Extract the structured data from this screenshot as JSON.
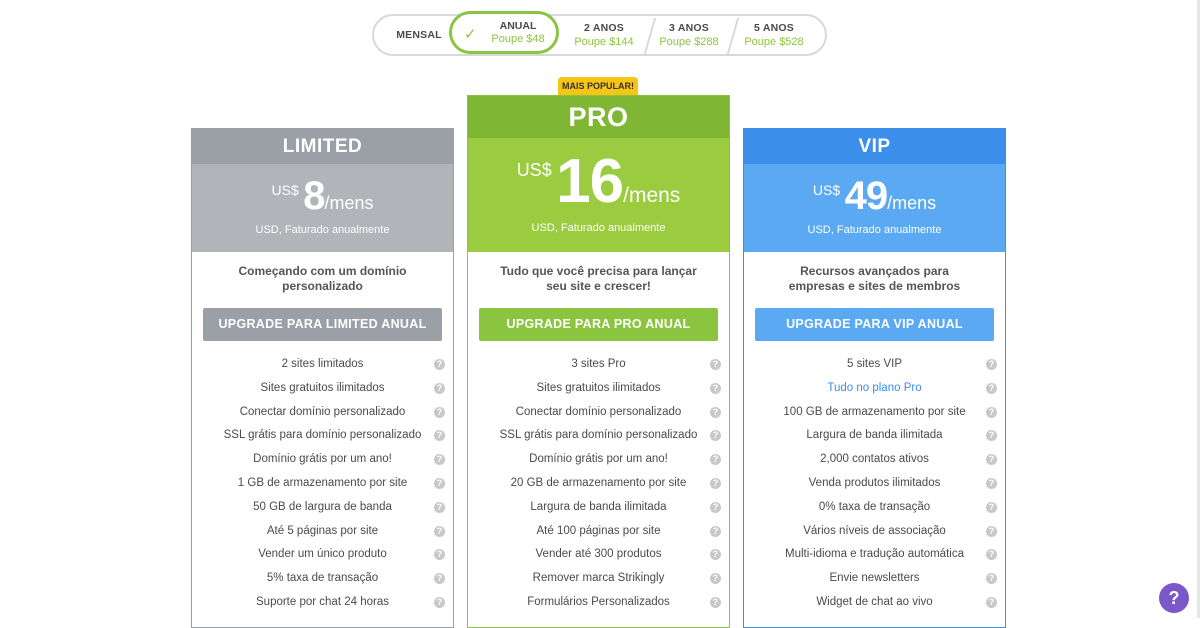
{
  "period": {
    "mensal": {
      "label": "MENSAL"
    },
    "anual": {
      "label": "ANUAL",
      "save": "Poupe $48"
    },
    "two_years": {
      "label": "2 ANOS",
      "save": "Poupe $144"
    },
    "three_years": {
      "label": "3 ANOS",
      "save": "Poupe $288"
    },
    "five_years": {
      "label": "5 ANOS",
      "save": "Poupe $528"
    },
    "selected": "ANUAL"
  },
  "badge": "MAIS POPULAR!",
  "plans": [
    {
      "name": "LIMITED",
      "currency": "US$",
      "amount": "8",
      "per": "/mens",
      "billed": "USD, Faturado anualmente",
      "tagline": "Começando com um domínio personalizado",
      "button": "UPGRADE PARA LIMITED ANUAL",
      "features": [
        "2 sites limitados",
        "Sites gratuitos ilimitados",
        "Conectar domínio personalizado",
        "SSL grátis para domínio personalizado",
        "Domínio grátis por um ano!",
        "1 GB de armazenamento por site",
        "50 GB de largura de banda",
        "Até 5 páginas por site",
        "Vender um único produto",
        "5% taxa de transação",
        "Suporte por chat 24 horas"
      ]
    },
    {
      "name": "PRO",
      "currency": "US$",
      "amount": "16",
      "per": "/mens",
      "billed": "USD, Faturado anualmente",
      "tagline": "Tudo que você precisa para lançar seu site e crescer!",
      "button": "UPGRADE PARA PRO ANUAL",
      "features": [
        "3 sites Pro",
        "Sites gratuitos ilimitados",
        "Conectar domínio personalizado",
        "SSL grátis para domínio personalizado",
        "Domínio grátis por um ano!",
        "20 GB de armazenamento por site",
        "Largura de banda ilimitada",
        "Até 100 páginas por site",
        "Vender até 300 produtos",
        "Remover marca Strikingly",
        "Formulários Personalizados"
      ]
    },
    {
      "name": "VIP",
      "currency": "US$",
      "amount": "49",
      "per": "/mens",
      "billed": "USD, Faturado anualmente",
      "tagline": "Recursos avançados para empresas e sites de membros",
      "button": "UPGRADE PARA VIP ANUAL",
      "features": [
        "5 sites VIP",
        "Tudo no plano Pro",
        "100 GB de armazenamento por site",
        "Largura de banda ilimitada",
        "2,000 contatos ativos",
        "Venda produtos ilimitados",
        "0% taxa de transação",
        "Vários níveis de associação",
        "Multi-idioma e tradução automática",
        "Envie newsletters",
        "Widget de chat ao vivo"
      ]
    }
  ],
  "help_icon": "question-mark-icon",
  "colors": {
    "green": "#8bc53f",
    "gray": "#9aa0a6",
    "blue": "#3b8fea",
    "badge": "#f6c515",
    "help": "#7b58c9"
  }
}
